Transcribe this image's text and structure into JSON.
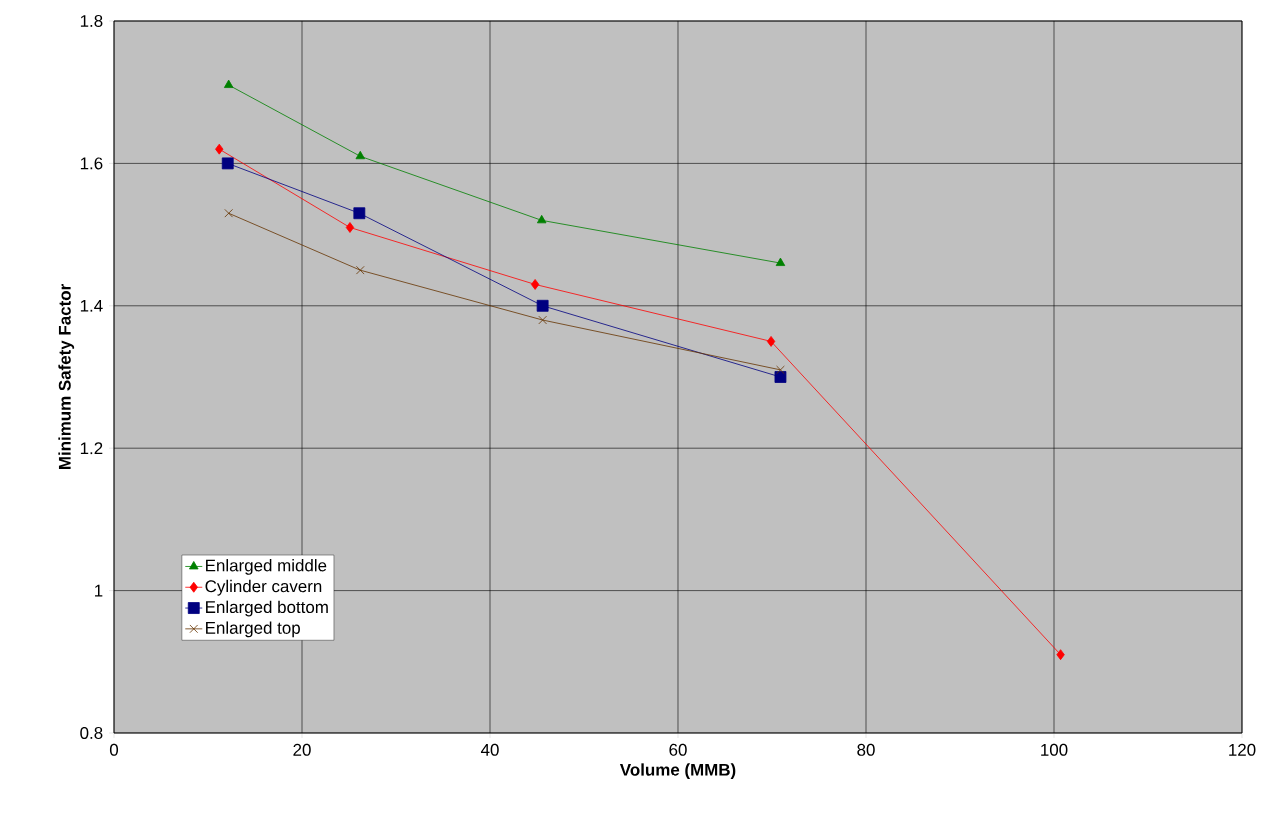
{
  "chart_data": {
    "type": "line",
    "xlabel": "Volume (MMB)",
    "ylabel": "Minimum Safety Factor",
    "xlim": [
      0,
      120
    ],
    "xticks": [
      0,
      20,
      40,
      60,
      80,
      100,
      120
    ],
    "ylim": [
      0.8,
      1.8
    ],
    "yticks": [
      0.8,
      1,
      1.2,
      1.4,
      1.6,
      1.8
    ],
    "grid": true,
    "legend": "bottom left",
    "line_style": "solid",
    "series": [
      {
        "name": "Enlarged middle",
        "color": "#008000",
        "marker": "triangle",
        "x": [
          12.2,
          26.2,
          45.5,
          70.9
        ],
        "values": [
          1.71,
          1.61,
          1.52,
          1.46
        ]
      },
      {
        "name": "Cylinder cavern",
        "color": "#ff0000",
        "marker": "diamond",
        "x": [
          11.2,
          25.1,
          44.8,
          69.9,
          100.7
        ],
        "values": [
          1.62,
          1.51,
          1.43,
          1.35,
          0.91
        ]
      },
      {
        "name": "Enlarged bottom",
        "color": "#000080",
        "marker": "square",
        "x": [
          12.1,
          26.1,
          45.6,
          70.9
        ],
        "values": [
          1.6,
          1.53,
          1.4,
          1.3
        ]
      },
      {
        "name": "Enlarged top",
        "color": "#663300",
        "marker": "cross",
        "x": [
          12.2,
          26.2,
          45.6,
          70.9
        ],
        "values": [
          1.53,
          1.45,
          1.38,
          1.31
        ]
      }
    ]
  }
}
